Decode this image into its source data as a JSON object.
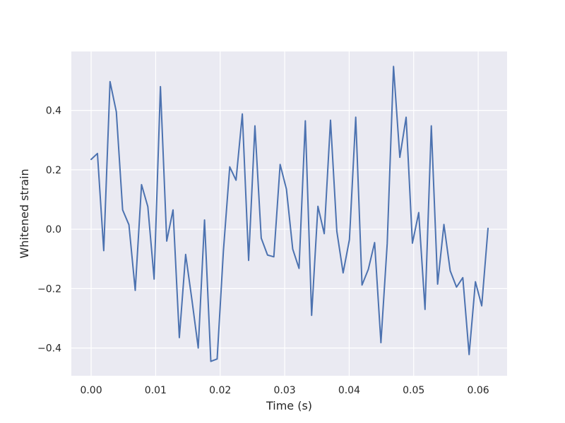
{
  "chart_data": {
    "type": "line",
    "title": "",
    "xlabel": "Time (s)",
    "ylabel": "Whitened strain",
    "xlim": [
      -0.00307,
      0.06448
    ],
    "ylim": [
      -0.4935,
      0.5985
    ],
    "grid": true,
    "legend": "none",
    "xticks": [
      0.0,
      0.01,
      0.02,
      0.03,
      0.04,
      0.05,
      0.06
    ],
    "xtick_labels": [
      "0.00",
      "0.01",
      "0.02",
      "0.03",
      "0.04",
      "0.05",
      "0.06"
    ],
    "yticks": [
      -0.4,
      -0.2,
      0.0,
      0.2,
      0.4
    ],
    "ytick_labels": [
      "−0.4",
      "−0.2",
      "0.0",
      "0.2",
      "0.4"
    ],
    "colors": {
      "background": "#eaeaf2",
      "grid": "#ffffff",
      "line": "#4c72b0",
      "text": "#262626"
    },
    "series": [
      {
        "color": "#4c72b0",
        "x": [
          0.0,
          0.000977,
          0.001953,
          0.00293,
          0.003906,
          0.004883,
          0.005859,
          0.006836,
          0.007812,
          0.008789,
          0.009766,
          0.010742,
          0.011719,
          0.012695,
          0.013672,
          0.014648,
          0.015625,
          0.016602,
          0.017578,
          0.018555,
          0.019531,
          0.020508,
          0.021484,
          0.022461,
          0.023438,
          0.024414,
          0.025391,
          0.026367,
          0.027344,
          0.02832,
          0.029297,
          0.030273,
          0.03125,
          0.032227,
          0.033203,
          0.03418,
          0.035156,
          0.036133,
          0.037109,
          0.038086,
          0.039062,
          0.040039,
          0.041016,
          0.041992,
          0.042969,
          0.043945,
          0.044922,
          0.045898,
          0.046875,
          0.047852,
          0.048828,
          0.049805,
          0.050781,
          0.051758,
          0.052734,
          0.053711,
          0.054688,
          0.055664,
          0.056641,
          0.057617,
          0.058594,
          0.05957,
          0.060547,
          0.061523
        ],
        "y": [
          0.235,
          0.255,
          -0.072,
          0.497,
          0.395,
          0.065,
          0.015,
          -0.206,
          0.15,
          0.076,
          -0.168,
          0.48,
          -0.04,
          0.065,
          -0.365,
          -0.085,
          -0.238,
          -0.4,
          0.031,
          -0.445,
          -0.437,
          -0.072,
          0.21,
          0.165,
          0.388,
          -0.105,
          0.348,
          -0.03,
          -0.087,
          -0.093,
          0.218,
          0.135,
          -0.067,
          -0.132,
          0.365,
          -0.29,
          0.077,
          -0.015,
          0.367,
          -0.007,
          -0.147,
          -0.035,
          0.377,
          -0.188,
          -0.135,
          -0.045,
          -0.382,
          -0.048,
          0.548,
          0.242,
          0.377,
          -0.047,
          0.056,
          -0.27,
          0.348,
          -0.185,
          0.016,
          -0.14,
          -0.195,
          -0.163,
          -0.422,
          -0.177,
          -0.258,
          0.003
        ]
      }
    ]
  }
}
